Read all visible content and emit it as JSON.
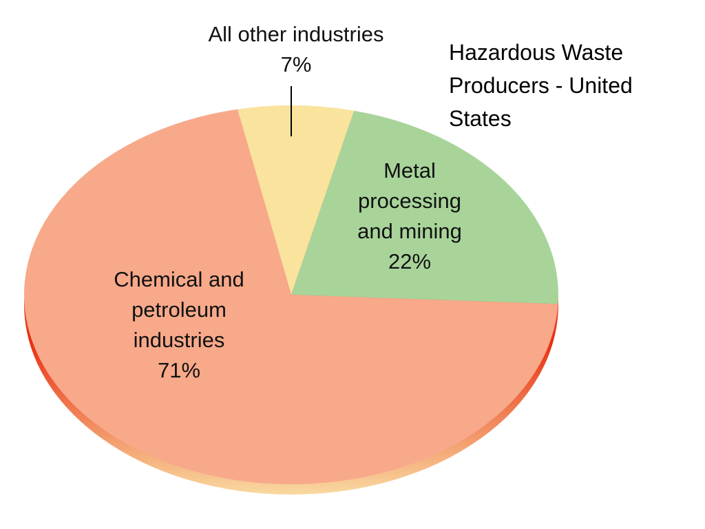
{
  "chart_data": {
    "type": "pie",
    "title": "Hazardous Waste Producers - United States",
    "categories": [
      "All other industries",
      "Metal processing and mining",
      "Chemical and petroleum industries"
    ],
    "values": [
      7,
      22,
      71
    ],
    "value_labels": [
      "7%",
      "22%",
      "71%"
    ],
    "colors": [
      "#fae39d",
      "#a8d49a",
      "#f7a98a"
    ]
  }
}
